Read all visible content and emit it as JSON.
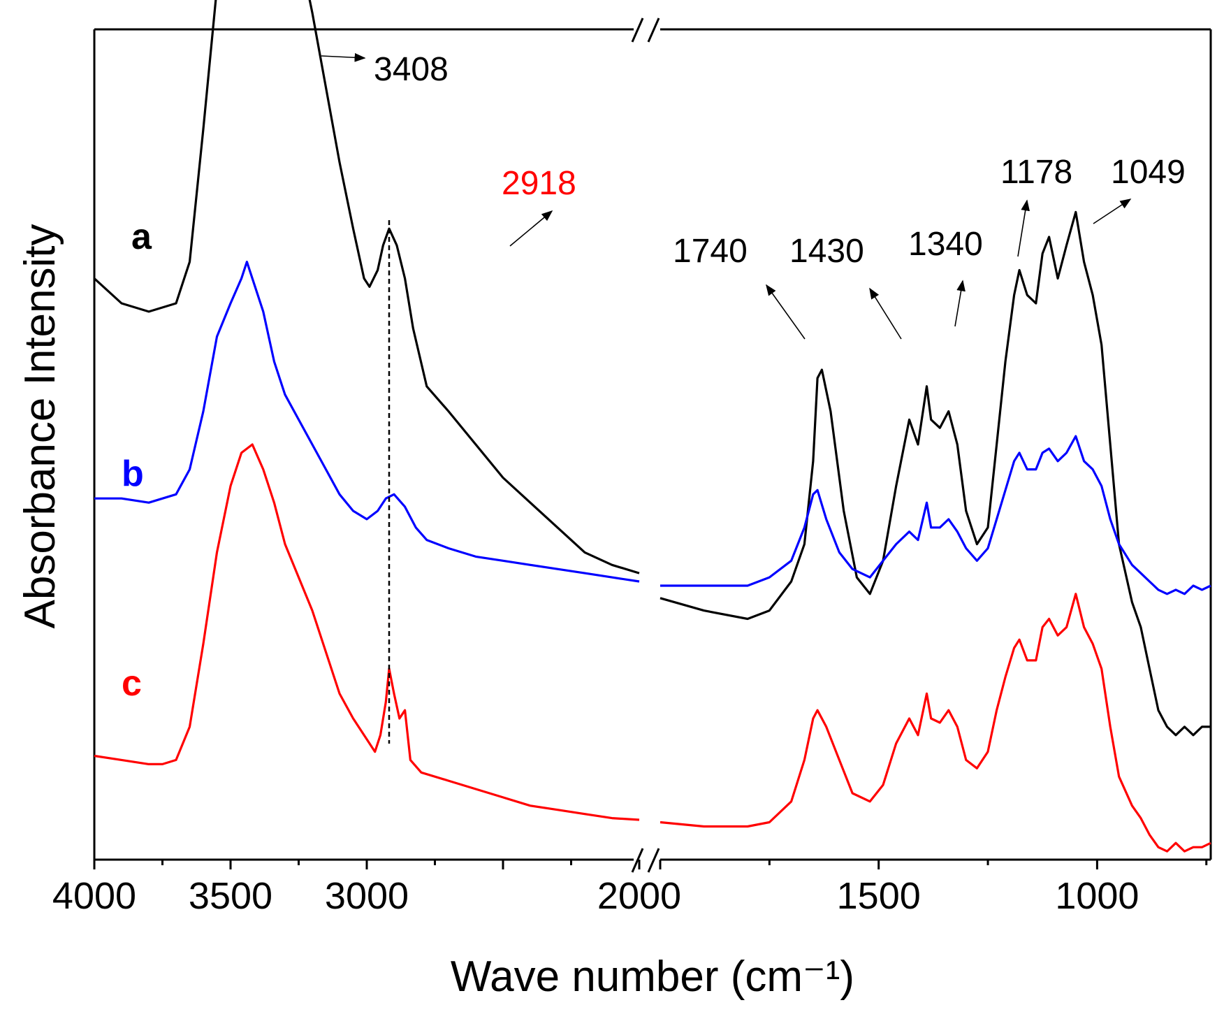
{
  "chart_data": {
    "type": "line",
    "title": "",
    "xlabel": "Wave number (cm⁻¹)",
    "ylabel": "Absorbance Intensity",
    "xaxis_break": [
      2000,
      2000
    ],
    "x_segments": [
      {
        "range": [
          4000,
          2000
        ],
        "ticks": [
          4000,
          3500,
          3000,
          2000
        ],
        "tick_labels": [
          "4000",
          "3500",
          "3000",
          "2000"
        ]
      },
      {
        "range": [
          2000,
          740
        ],
        "ticks": [
          1500,
          1000
        ],
        "tick_labels": [
          "1500",
          "1000"
        ]
      }
    ],
    "series": [
      {
        "name": "a",
        "color": "#000000",
        "points_left": [
          [
            4000,
            0.3
          ],
          [
            3900,
            0.33
          ],
          [
            3800,
            0.34
          ],
          [
            3700,
            0.33
          ],
          [
            3650,
            0.28
          ],
          [
            3600,
            0.12
          ],
          [
            3550,
            -0.05
          ],
          [
            3500,
            -0.18
          ],
          [
            3460,
            -0.24
          ],
          [
            3420,
            -0.26
          ],
          [
            3380,
            -0.24
          ],
          [
            3340,
            -0.19
          ],
          [
            3300,
            -0.15
          ],
          [
            3250,
            -0.1
          ],
          [
            3200,
            -0.02
          ],
          [
            3150,
            0.07
          ],
          [
            3100,
            0.16
          ],
          [
            3050,
            0.24
          ],
          [
            3010,
            0.3
          ],
          [
            2990,
            0.31
          ],
          [
            2960,
            0.29
          ],
          [
            2940,
            0.26
          ],
          [
            2918,
            0.24
          ],
          [
            2890,
            0.26
          ],
          [
            2860,
            0.3
          ],
          [
            2830,
            0.36
          ],
          [
            2780,
            0.43
          ],
          [
            2700,
            0.46
          ],
          [
            2600,
            0.5
          ],
          [
            2500,
            0.54
          ],
          [
            2400,
            0.57
          ],
          [
            2300,
            0.6
          ],
          [
            2200,
            0.63
          ],
          [
            2100,
            0.645
          ],
          [
            2000,
            0.655
          ]
        ],
        "points_right": [
          [
            2000,
            0.685
          ],
          [
            1900,
            0.7
          ],
          [
            1800,
            0.71
          ],
          [
            1750,
            0.7
          ],
          [
            1700,
            0.665
          ],
          [
            1670,
            0.62
          ],
          [
            1650,
            0.52
          ],
          [
            1640,
            0.42
          ],
          [
            1630,
            0.41
          ],
          [
            1610,
            0.46
          ],
          [
            1580,
            0.58
          ],
          [
            1550,
            0.66
          ],
          [
            1520,
            0.68
          ],
          [
            1490,
            0.64
          ],
          [
            1460,
            0.55
          ],
          [
            1430,
            0.47
          ],
          [
            1410,
            0.5
          ],
          [
            1390,
            0.43
          ],
          [
            1380,
            0.47
          ],
          [
            1360,
            0.48
          ],
          [
            1340,
            0.46
          ],
          [
            1320,
            0.5
          ],
          [
            1300,
            0.58
          ],
          [
            1275,
            0.62
          ],
          [
            1250,
            0.6
          ],
          [
            1230,
            0.5
          ],
          [
            1210,
            0.4
          ],
          [
            1190,
            0.32
          ],
          [
            1178,
            0.29
          ],
          [
            1160,
            0.32
          ],
          [
            1140,
            0.33
          ],
          [
            1125,
            0.27
          ],
          [
            1110,
            0.25
          ],
          [
            1090,
            0.3
          ],
          [
            1070,
            0.26
          ],
          [
            1049,
            0.22
          ],
          [
            1030,
            0.28
          ],
          [
            1010,
            0.32
          ],
          [
            990,
            0.38
          ],
          [
            970,
            0.5
          ],
          [
            950,
            0.62
          ],
          [
            920,
            0.69
          ],
          [
            900,
            0.72
          ],
          [
            880,
            0.77
          ],
          [
            860,
            0.82
          ],
          [
            840,
            0.84
          ],
          [
            820,
            0.85
          ],
          [
            800,
            0.84
          ],
          [
            780,
            0.85
          ],
          [
            760,
            0.84
          ],
          [
            740,
            0.84
          ]
        ]
      },
      {
        "name": "b",
        "color": "#0000ff",
        "points_left": [
          [
            4000,
            0.565
          ],
          [
            3900,
            0.565
          ],
          [
            3800,
            0.57
          ],
          [
            3700,
            0.56
          ],
          [
            3650,
            0.53
          ],
          [
            3600,
            0.46
          ],
          [
            3550,
            0.37
          ],
          [
            3500,
            0.33
          ],
          [
            3460,
            0.3
          ],
          [
            3440,
            0.28
          ],
          [
            3420,
            0.3
          ],
          [
            3380,
            0.34
          ],
          [
            3340,
            0.4
          ],
          [
            3300,
            0.44
          ],
          [
            3250,
            0.47
          ],
          [
            3200,
            0.5
          ],
          [
            3150,
            0.53
          ],
          [
            3100,
            0.56
          ],
          [
            3050,
            0.58
          ],
          [
            3000,
            0.59
          ],
          [
            2960,
            0.58
          ],
          [
            2930,
            0.565
          ],
          [
            2900,
            0.56
          ],
          [
            2860,
            0.575
          ],
          [
            2820,
            0.6
          ],
          [
            2780,
            0.615
          ],
          [
            2700,
            0.625
          ],
          [
            2600,
            0.635
          ],
          [
            2500,
            0.64
          ],
          [
            2400,
            0.645
          ],
          [
            2300,
            0.65
          ],
          [
            2200,
            0.655
          ],
          [
            2100,
            0.66
          ],
          [
            2000,
            0.665
          ]
        ],
        "points_right": [
          [
            2000,
            0.67
          ],
          [
            1900,
            0.67
          ],
          [
            1800,
            0.67
          ],
          [
            1750,
            0.66
          ],
          [
            1700,
            0.64
          ],
          [
            1670,
            0.6
          ],
          [
            1650,
            0.56
          ],
          [
            1640,
            0.555
          ],
          [
            1620,
            0.59
          ],
          [
            1590,
            0.63
          ],
          [
            1560,
            0.65
          ],
          [
            1520,
            0.66
          ],
          [
            1490,
            0.64
          ],
          [
            1460,
            0.62
          ],
          [
            1430,
            0.605
          ],
          [
            1410,
            0.615
          ],
          [
            1390,
            0.57
          ],
          [
            1380,
            0.6
          ],
          [
            1360,
            0.6
          ],
          [
            1340,
            0.59
          ],
          [
            1320,
            0.605
          ],
          [
            1300,
            0.625
          ],
          [
            1275,
            0.64
          ],
          [
            1250,
            0.625
          ],
          [
            1230,
            0.59
          ],
          [
            1210,
            0.555
          ],
          [
            1190,
            0.52
          ],
          [
            1178,
            0.51
          ],
          [
            1160,
            0.53
          ],
          [
            1140,
            0.53
          ],
          [
            1125,
            0.51
          ],
          [
            1110,
            0.505
          ],
          [
            1090,
            0.52
          ],
          [
            1070,
            0.51
          ],
          [
            1049,
            0.49
          ],
          [
            1030,
            0.52
          ],
          [
            1010,
            0.53
          ],
          [
            990,
            0.55
          ],
          [
            970,
            0.59
          ],
          [
            950,
            0.62
          ],
          [
            920,
            0.645
          ],
          [
            900,
            0.655
          ],
          [
            880,
            0.665
          ],
          [
            860,
            0.675
          ],
          [
            840,
            0.68
          ],
          [
            820,
            0.675
          ],
          [
            800,
            0.68
          ],
          [
            780,
            0.67
          ],
          [
            760,
            0.675
          ],
          [
            740,
            0.67
          ]
        ]
      },
      {
        "name": "c",
        "color": "#ff0000",
        "points_left": [
          [
            4000,
            0.875
          ],
          [
            3900,
            0.88
          ],
          [
            3800,
            0.885
          ],
          [
            3750,
            0.885
          ],
          [
            3700,
            0.88
          ],
          [
            3650,
            0.84
          ],
          [
            3600,
            0.74
          ],
          [
            3550,
            0.63
          ],
          [
            3500,
            0.55
          ],
          [
            3460,
            0.51
          ],
          [
            3420,
            0.5
          ],
          [
            3380,
            0.53
          ],
          [
            3340,
            0.57
          ],
          [
            3300,
            0.62
          ],
          [
            3250,
            0.66
          ],
          [
            3200,
            0.7
          ],
          [
            3150,
            0.75
          ],
          [
            3100,
            0.8
          ],
          [
            3050,
            0.83
          ],
          [
            3000,
            0.855
          ],
          [
            2970,
            0.87
          ],
          [
            2950,
            0.85
          ],
          [
            2930,
            0.81
          ],
          [
            2918,
            0.77
          ],
          [
            2900,
            0.8
          ],
          [
            2880,
            0.83
          ],
          [
            2860,
            0.82
          ],
          [
            2840,
            0.88
          ],
          [
            2800,
            0.895
          ],
          [
            2700,
            0.905
          ],
          [
            2600,
            0.915
          ],
          [
            2500,
            0.925
          ],
          [
            2400,
            0.935
          ],
          [
            2300,
            0.94
          ],
          [
            2200,
            0.945
          ],
          [
            2100,
            0.95
          ],
          [
            2000,
            0.952
          ]
        ],
        "points_right": [
          [
            2000,
            0.955
          ],
          [
            1900,
            0.96
          ],
          [
            1800,
            0.96
          ],
          [
            1750,
            0.955
          ],
          [
            1700,
            0.93
          ],
          [
            1670,
            0.88
          ],
          [
            1650,
            0.83
          ],
          [
            1640,
            0.82
          ],
          [
            1620,
            0.84
          ],
          [
            1590,
            0.88
          ],
          [
            1560,
            0.92
          ],
          [
            1520,
            0.93
          ],
          [
            1490,
            0.91
          ],
          [
            1460,
            0.86
          ],
          [
            1430,
            0.83
          ],
          [
            1410,
            0.85
          ],
          [
            1390,
            0.8
          ],
          [
            1380,
            0.83
          ],
          [
            1360,
            0.835
          ],
          [
            1340,
            0.82
          ],
          [
            1320,
            0.84
          ],
          [
            1300,
            0.88
          ],
          [
            1275,
            0.89
          ],
          [
            1250,
            0.87
          ],
          [
            1230,
            0.82
          ],
          [
            1210,
            0.78
          ],
          [
            1190,
            0.745
          ],
          [
            1178,
            0.735
          ],
          [
            1160,
            0.76
          ],
          [
            1140,
            0.76
          ],
          [
            1125,
            0.72
          ],
          [
            1110,
            0.71
          ],
          [
            1090,
            0.73
          ],
          [
            1070,
            0.72
          ],
          [
            1049,
            0.68
          ],
          [
            1030,
            0.72
          ],
          [
            1010,
            0.74
          ],
          [
            990,
            0.77
          ],
          [
            970,
            0.84
          ],
          [
            950,
            0.9
          ],
          [
            920,
            0.935
          ],
          [
            900,
            0.95
          ],
          [
            880,
            0.97
          ],
          [
            860,
            0.985
          ],
          [
            840,
            0.99
          ],
          [
            820,
            0.98
          ],
          [
            800,
            0.99
          ],
          [
            780,
            0.985
          ],
          [
            760,
            0.985
          ],
          [
            740,
            0.98
          ]
        ]
      }
    ],
    "annotations": [
      {
        "text": "3408",
        "color": "#000000"
      },
      {
        "text": "2918",
        "color": "#ff0000"
      },
      {
        "text": "1740",
        "color": "#000000"
      },
      {
        "text": "1430",
        "color": "#000000"
      },
      {
        "text": "1340",
        "color": "#000000"
      },
      {
        "text": "1178",
        "color": "#000000"
      },
      {
        "text": "1049",
        "color": "#000000"
      }
    ],
    "reference_line_x": 2918
  }
}
